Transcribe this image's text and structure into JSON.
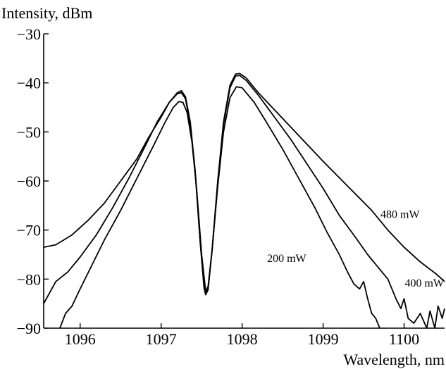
{
  "chart_data": {
    "type": "line",
    "ylabel": "Intensity, dBm",
    "xlabel": "Wavelength, nm",
    "xlim": [
      1095.55,
      1100.5
    ],
    "ylim": [
      -90,
      -30
    ],
    "xticks": [
      1096,
      1097,
      1098,
      1099,
      1100
    ],
    "xtick_labels": [
      "1096",
      "1097",
      "1098",
      "1099",
      "1100"
    ],
    "yticks": [
      -30,
      -40,
      -50,
      -60,
      -70,
      -80,
      -90
    ],
    "ytick_labels": [
      "−30",
      "−40",
      "−50",
      "−60",
      "−70",
      "−80",
      "−90"
    ],
    "grid": false,
    "line_color": "#000000",
    "series": [
      {
        "name": "480 mW",
        "points": [
          [
            1095.55,
            -73.5
          ],
          [
            1095.7,
            -73
          ],
          [
            1095.9,
            -71
          ],
          [
            1096.1,
            -68
          ],
          [
            1096.3,
            -64.5
          ],
          [
            1096.5,
            -60
          ],
          [
            1096.7,
            -55.5
          ],
          [
            1096.85,
            -51
          ],
          [
            1097.0,
            -47
          ],
          [
            1097.1,
            -44
          ],
          [
            1097.2,
            -42
          ],
          [
            1097.25,
            -41.6
          ],
          [
            1097.3,
            -42.8
          ],
          [
            1097.36,
            -48
          ],
          [
            1097.42,
            -58
          ],
          [
            1097.48,
            -72
          ],
          [
            1097.53,
            -81.5
          ],
          [
            1097.55,
            -83
          ],
          [
            1097.58,
            -82
          ],
          [
            1097.63,
            -74
          ],
          [
            1097.7,
            -60
          ],
          [
            1097.77,
            -48
          ],
          [
            1097.85,
            -40.5
          ],
          [
            1097.92,
            -38.2
          ],
          [
            1097.97,
            -38.1
          ],
          [
            1098.05,
            -39
          ],
          [
            1098.2,
            -42
          ],
          [
            1098.4,
            -45.5
          ],
          [
            1098.6,
            -49
          ],
          [
            1098.8,
            -52.5
          ],
          [
            1099.0,
            -56
          ],
          [
            1099.3,
            -61
          ],
          [
            1099.6,
            -66
          ],
          [
            1099.8,
            -70
          ],
          [
            1100.0,
            -73.5
          ],
          [
            1100.2,
            -76.5
          ],
          [
            1100.4,
            -79
          ],
          [
            1100.5,
            -80.5
          ]
        ]
      },
      {
        "name": "400 mW",
        "points": [
          [
            1095.55,
            -85
          ],
          [
            1095.7,
            -80.5
          ],
          [
            1095.85,
            -78.5
          ],
          [
            1096.0,
            -75.5
          ],
          [
            1096.2,
            -71
          ],
          [
            1096.4,
            -65.5
          ],
          [
            1096.6,
            -59.5
          ],
          [
            1096.8,
            -53
          ],
          [
            1096.95,
            -48
          ],
          [
            1097.1,
            -44
          ],
          [
            1097.2,
            -42.2
          ],
          [
            1097.25,
            -42
          ],
          [
            1097.3,
            -43.2
          ],
          [
            1097.36,
            -48.5
          ],
          [
            1097.42,
            -58
          ],
          [
            1097.48,
            -72
          ],
          [
            1097.53,
            -81.8
          ],
          [
            1097.55,
            -83.2
          ],
          [
            1097.58,
            -82.2
          ],
          [
            1097.63,
            -74
          ],
          [
            1097.7,
            -60
          ],
          [
            1097.77,
            -48.5
          ],
          [
            1097.85,
            -41
          ],
          [
            1097.92,
            -38.6
          ],
          [
            1097.97,
            -38.5
          ],
          [
            1098.05,
            -39.5
          ],
          [
            1098.2,
            -42.5
          ],
          [
            1098.4,
            -47
          ],
          [
            1098.6,
            -51.5
          ],
          [
            1098.8,
            -56.5
          ],
          [
            1099.0,
            -61.5
          ],
          [
            1099.2,
            -67
          ],
          [
            1099.4,
            -71.5
          ],
          [
            1099.55,
            -75
          ],
          [
            1099.7,
            -78
          ],
          [
            1099.8,
            -80
          ],
          [
            1099.9,
            -84
          ],
          [
            1099.96,
            -86
          ],
          [
            1100.0,
            -84
          ],
          [
            1100.05,
            -88
          ],
          [
            1100.12,
            -89
          ],
          [
            1100.2,
            -87
          ],
          [
            1100.28,
            -90
          ],
          [
            1100.32,
            -86.5
          ],
          [
            1100.38,
            -90
          ],
          [
            1100.42,
            -85.5
          ],
          [
            1100.47,
            -88
          ],
          [
            1100.5,
            -86
          ]
        ]
      },
      {
        "name": "200 mW",
        "points": [
          [
            1095.75,
            -90
          ],
          [
            1095.82,
            -87
          ],
          [
            1095.9,
            -85.5
          ],
          [
            1096.0,
            -82
          ],
          [
            1096.15,
            -77
          ],
          [
            1096.3,
            -72
          ],
          [
            1096.5,
            -66
          ],
          [
            1096.7,
            -59.5
          ],
          [
            1096.9,
            -53
          ],
          [
            1097.05,
            -48
          ],
          [
            1097.15,
            -45
          ],
          [
            1097.22,
            -43.8
          ],
          [
            1097.27,
            -44
          ],
          [
            1097.32,
            -46
          ],
          [
            1097.38,
            -52
          ],
          [
            1097.44,
            -62
          ],
          [
            1097.5,
            -75
          ],
          [
            1097.55,
            -82.5
          ],
          [
            1097.58,
            -81.5
          ],
          [
            1097.63,
            -74
          ],
          [
            1097.7,
            -61
          ],
          [
            1097.77,
            -50
          ],
          [
            1097.85,
            -43
          ],
          [
            1097.93,
            -40.8
          ],
          [
            1098.0,
            -41
          ],
          [
            1098.15,
            -44
          ],
          [
            1098.3,
            -48
          ],
          [
            1098.5,
            -53.5
          ],
          [
            1098.7,
            -59.5
          ],
          [
            1098.9,
            -65.5
          ],
          [
            1099.05,
            -70.5
          ],
          [
            1099.2,
            -75
          ],
          [
            1099.3,
            -78.5
          ],
          [
            1099.38,
            -81
          ],
          [
            1099.45,
            -82
          ],
          [
            1099.5,
            -80.5
          ],
          [
            1099.55,
            -84
          ],
          [
            1099.6,
            -87
          ],
          [
            1099.65,
            -88
          ],
          [
            1099.7,
            -90
          ]
        ]
      }
    ],
    "annotations": [
      {
        "text": "480 mW",
        "x": 1099.95,
        "y": -67.5
      },
      {
        "text": "200 mW",
        "x": 1098.55,
        "y": -76.5
      },
      {
        "text": "400 mW",
        "x": 1100.25,
        "y": -81.5
      }
    ]
  }
}
